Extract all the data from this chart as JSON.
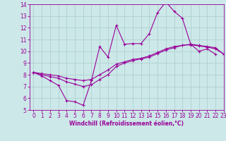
{
  "xlabel": "Windchill (Refroidissement éolien,°C)",
  "background_color": "#cce8e8",
  "line_color": "#990099",
  "grid_color": "#aacccc",
  "xlim_min": -0.5,
  "xlim_max": 23,
  "ylim_min": 5,
  "ylim_max": 14,
  "xticks": [
    0,
    1,
    2,
    3,
    4,
    5,
    6,
    7,
    8,
    9,
    10,
    11,
    12,
    13,
    14,
    15,
    16,
    17,
    18,
    19,
    20,
    21,
    22,
    23
  ],
  "yticks": [
    5,
    6,
    7,
    8,
    9,
    10,
    11,
    12,
    13,
    14
  ],
  "line1_x": [
    0,
    1,
    2,
    3,
    4,
    5,
    6,
    7,
    8,
    9,
    10,
    11,
    12,
    13,
    14,
    15,
    16,
    17,
    18,
    19,
    20,
    21,
    22
  ],
  "line1_y": [
    8.2,
    7.9,
    7.5,
    7.1,
    5.8,
    5.7,
    5.4,
    7.5,
    10.4,
    9.5,
    12.2,
    10.6,
    10.65,
    10.65,
    11.5,
    13.3,
    14.2,
    13.4,
    12.8,
    10.6,
    10.0,
    10.2,
    9.75
  ],
  "line2_x": [
    0,
    1,
    2,
    3,
    4,
    5,
    6,
    7,
    8,
    9,
    10,
    11,
    12,
    13,
    14,
    15,
    16,
    17,
    18,
    19,
    20,
    21,
    22,
    23
  ],
  "line2_y": [
    8.2,
    8.1,
    8.0,
    7.9,
    7.7,
    7.6,
    7.5,
    7.6,
    8.0,
    8.4,
    8.9,
    9.1,
    9.3,
    9.4,
    9.6,
    9.9,
    10.2,
    10.4,
    10.5,
    10.6,
    10.5,
    10.4,
    10.3,
    9.75
  ],
  "line3_x": [
    0,
    1,
    2,
    3,
    4,
    5,
    6,
    7,
    8,
    9,
    10,
    11,
    12,
    13,
    14,
    15,
    16,
    17,
    18,
    19,
    20,
    21,
    22,
    23
  ],
  "line3_y": [
    8.2,
    8.0,
    7.85,
    7.7,
    7.4,
    7.2,
    7.0,
    7.15,
    7.6,
    8.0,
    8.7,
    9.0,
    9.2,
    9.35,
    9.5,
    9.8,
    10.1,
    10.3,
    10.5,
    10.55,
    10.45,
    10.35,
    10.2,
    9.75
  ],
  "tick_fontsize": 5.5,
  "xlabel_fontsize": 5.5,
  "marker_size": 2.5,
  "linewidth": 0.8
}
